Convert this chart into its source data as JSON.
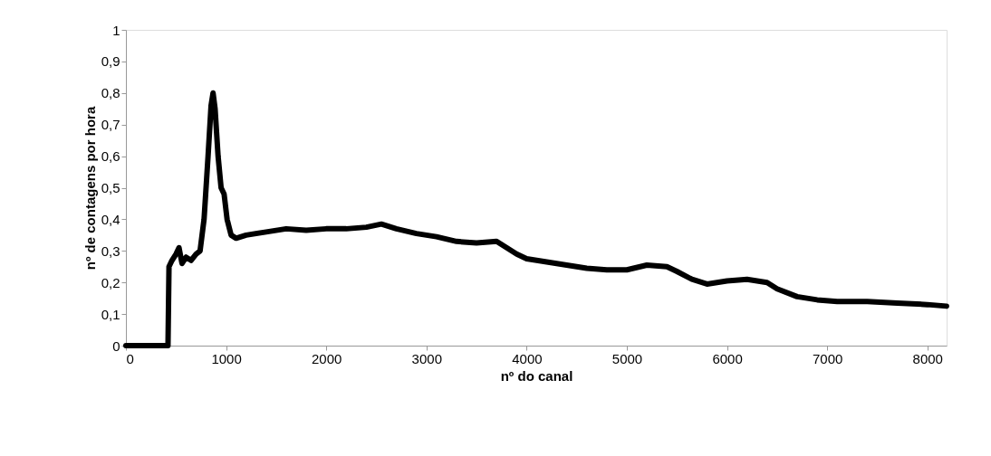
{
  "chart_data": {
    "type": "line",
    "xlabel": "nº do canal",
    "ylabel": "nº de contagens por hora",
    "x": [
      0,
      420,
      430,
      460,
      500,
      530,
      560,
      600,
      650,
      700,
      740,
      780,
      820,
      850,
      870,
      890,
      920,
      950,
      980,
      1010,
      1050,
      1100,
      1200,
      1400,
      1600,
      1800,
      2000,
      2200,
      2400,
      2550,
      2700,
      2900,
      3100,
      3300,
      3500,
      3700,
      3800,
      3900,
      4000,
      4200,
      4400,
      4600,
      4800,
      5000,
      5200,
      5400,
      5500,
      5650,
      5800,
      6000,
      6200,
      6400,
      6500,
      6700,
      6900,
      7100,
      7400,
      7700,
      8000,
      8191
    ],
    "series": [
      {
        "color": "#000000",
        "values": [
          0,
          0,
          0.25,
          0.27,
          0.29,
          0.31,
          0.26,
          0.28,
          0.27,
          0.29,
          0.3,
          0.4,
          0.6,
          0.76,
          0.8,
          0.75,
          0.6,
          0.5,
          0.48,
          0.4,
          0.35,
          0.34,
          0.35,
          0.36,
          0.37,
          0.365,
          0.37,
          0.37,
          0.375,
          0.385,
          0.37,
          0.355,
          0.345,
          0.33,
          0.325,
          0.33,
          0.31,
          0.29,
          0.275,
          0.265,
          0.255,
          0.245,
          0.24,
          0.24,
          0.255,
          0.25,
          0.235,
          0.21,
          0.195,
          0.205,
          0.21,
          0.2,
          0.18,
          0.155,
          0.145,
          0.14,
          0.14,
          0.135,
          0.13,
          0.125
        ]
      }
    ],
    "xlim": [
      0,
      8192
    ],
    "xticks": [
      0,
      1000,
      2000,
      3000,
      4000,
      5000,
      6000,
      7000,
      8000
    ],
    "ylim": [
      0,
      1
    ],
    "yticks": [
      0,
      {
        "value": 0.1,
        "label": "0,1"
      },
      {
        "value": 0.2,
        "label": "0,2"
      },
      {
        "value": 0.3,
        "label": "0,3"
      },
      {
        "value": 0.4,
        "label": "0,4"
      },
      {
        "value": 0.5,
        "label": "0,5"
      },
      {
        "value": 0.6,
        "label": "0,6"
      },
      {
        "value": 0.7,
        "label": "0,7"
      },
      {
        "value": 0.8,
        "label": "0,8"
      },
      {
        "value": 0.9,
        "label": "0,9"
      },
      1
    ],
    "grid": false,
    "marker": "none",
    "line_style": "solid"
  }
}
